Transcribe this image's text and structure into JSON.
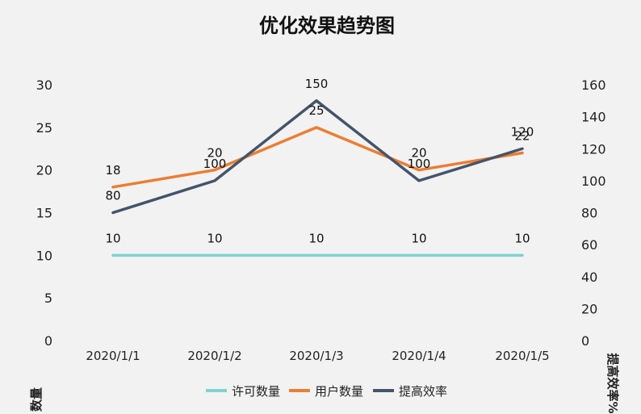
{
  "chart_data": {
    "type": "line",
    "title": "优化效果趋势图",
    "x": [
      "2020/1/1",
      "2020/1/2",
      "2020/1/3",
      "2020/1/4",
      "2020/1/5"
    ],
    "y_left": {
      "label": "数量",
      "range": [
        0,
        30
      ],
      "ticks": [
        0,
        5,
        10,
        15,
        20,
        25,
        30
      ]
    },
    "y_right": {
      "label": "提高效率%",
      "range": [
        0,
        160
      ],
      "ticks": [
        0,
        20,
        40,
        60,
        80,
        100,
        120,
        140,
        160
      ]
    },
    "series": [
      {
        "name": "许可数量",
        "axis": "left",
        "color": "#7fd3cf",
        "values": [
          10,
          10,
          10,
          10,
          10
        ]
      },
      {
        "name": "用户数量",
        "axis": "left",
        "color": "#ed7d31",
        "values": [
          18,
          20,
          25,
          20,
          22
        ]
      },
      {
        "name": "提高效率",
        "axis": "right",
        "color": "#44546a",
        "values": [
          80,
          100,
          150,
          100,
          120
        ]
      }
    ],
    "grid": false,
    "legend": "bottom"
  }
}
